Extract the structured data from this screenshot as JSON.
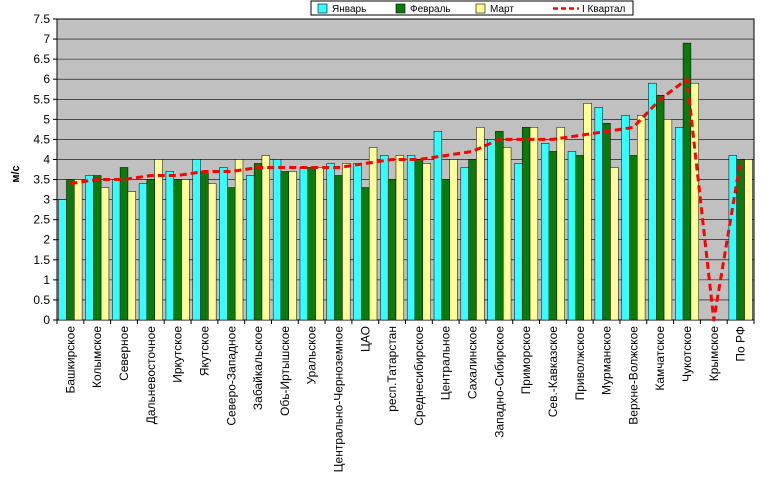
{
  "chart_data": {
    "type": "bar",
    "title": "",
    "xlabel": "",
    "ylabel": "м/с",
    "ylim": [
      0,
      7.5
    ],
    "ytick_step": 0.5,
    "ytick_labels": [
      "0",
      "0.5",
      "1",
      "1.5",
      "2",
      "2.5",
      "3",
      "3.5",
      "4",
      "4.5",
      "5",
      "5.5",
      "6",
      "6.5",
      "7",
      "7.5"
    ],
    "grid": true,
    "legend_position": "top",
    "categories": [
      "Башкирское",
      "Колымское",
      "Северное",
      "Дальневосточное",
      "Иркутское",
      "Якутское",
      "Северо-Западное",
      "Забайкальское",
      "Обь-Иртышское",
      "Уральское",
      "Центрально-Черноземное",
      "ЦАО",
      "респ.Татарстан",
      "Среднесибирское",
      "Центральное",
      "Сахалинское",
      "Западно-Сибирское",
      "Приморское",
      "Сев.-Кавказское",
      "Приволжское",
      "Мурманское",
      "Верхне-Волжское",
      "Камчатское",
      "Чукотское",
      "Крымское",
      "По РФ"
    ],
    "series": [
      {
        "name": "Январь",
        "kind": "bar",
        "color": "#33ffff",
        "values": [
          3.0,
          3.6,
          3.5,
          3.4,
          3.7,
          4.0,
          3.8,
          3.6,
          4.0,
          3.8,
          3.9,
          3.9,
          4.1,
          4.1,
          4.7,
          3.8,
          4.5,
          3.9,
          4.4,
          4.2,
          5.3,
          5.1,
          5.9,
          4.8,
          null,
          4.1
        ]
      },
      {
        "name": "Февраль",
        "kind": "bar",
        "color": "#0b7a0b",
        "values": [
          3.5,
          3.6,
          3.8,
          3.5,
          3.5,
          3.7,
          3.3,
          3.9,
          3.7,
          3.8,
          3.6,
          3.3,
          3.5,
          4.0,
          3.5,
          4.0,
          4.7,
          4.8,
          4.2,
          4.1,
          4.9,
          4.1,
          5.6,
          6.9,
          null,
          4.0
        ]
      },
      {
        "name": "Март",
        "kind": "bar",
        "color": "#ffff99",
        "values": [
          3.5,
          3.3,
          3.2,
          4.0,
          3.5,
          3.4,
          4.0,
          4.1,
          3.7,
          3.8,
          3.9,
          4.3,
          4.1,
          3.9,
          4.0,
          4.8,
          4.3,
          4.8,
          4.8,
          5.4,
          3.8,
          5.1,
          5.0,
          5.9,
          null,
          4.0
        ]
      },
      {
        "name": "I Квартал",
        "kind": "line",
        "color": "#ff0000",
        "values": [
          3.4,
          3.5,
          3.5,
          3.6,
          3.6,
          3.7,
          3.7,
          3.8,
          3.8,
          3.8,
          3.8,
          3.9,
          4.0,
          4.0,
          4.1,
          4.2,
          4.5,
          4.5,
          4.5,
          4.6,
          4.7,
          4.8,
          5.5,
          6.0,
          0.0,
          4.0
        ]
      }
    ]
  }
}
